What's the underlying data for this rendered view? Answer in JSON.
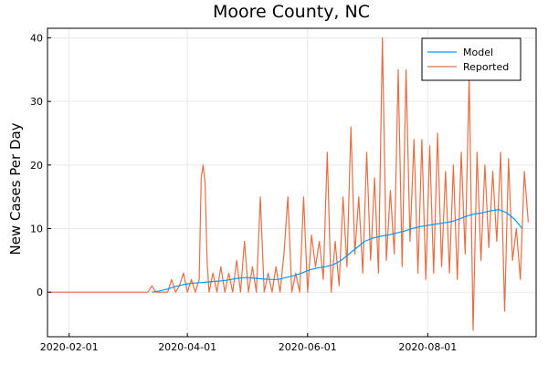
{
  "chart_data": {
    "type": "line",
    "title": "Moore County, NC",
    "ylabel": "New Cases Per Day",
    "xlabel": "",
    "x_ticks": [
      "2020-02-01",
      "2020-04-01",
      "2020-06-01",
      "2020-08-01"
    ],
    "y_ticks": [
      0,
      10,
      20,
      30,
      40
    ],
    "xlim": [
      "2020-01-21",
      "2020-09-25"
    ],
    "ylim": [
      -7,
      41.5
    ],
    "grid": true,
    "legend": "top-right",
    "colors": {
      "model": "#009af9",
      "reported": "#e26f46"
    },
    "series": [
      {
        "name": "Model",
        "points": [
          [
            "2020-03-14",
            0
          ],
          [
            "2020-03-18",
            0.2
          ],
          [
            "2020-03-22",
            0.5
          ],
          [
            "2020-03-26",
            0.9
          ],
          [
            "2020-03-30",
            1.2
          ],
          [
            "2020-04-03",
            1.4
          ],
          [
            "2020-04-07",
            1.5
          ],
          [
            "2020-04-11",
            1.6
          ],
          [
            "2020-04-15",
            1.7
          ],
          [
            "2020-04-19",
            1.8
          ],
          [
            "2020-04-23",
            2.0
          ],
          [
            "2020-04-27",
            2.2
          ],
          [
            "2020-05-01",
            2.3
          ],
          [
            "2020-05-05",
            2.2
          ],
          [
            "2020-05-09",
            2.1
          ],
          [
            "2020-05-13",
            2.0
          ],
          [
            "2020-05-17",
            2.0
          ],
          [
            "2020-05-21",
            2.3
          ],
          [
            "2020-05-25",
            2.6
          ],
          [
            "2020-05-29",
            3.0
          ],
          [
            "2020-06-02",
            3.5
          ],
          [
            "2020-06-06",
            3.8
          ],
          [
            "2020-06-10",
            4.0
          ],
          [
            "2020-06-14",
            4.3
          ],
          [
            "2020-06-18",
            5.0
          ],
          [
            "2020-06-22",
            6.0
          ],
          [
            "2020-06-26",
            7.0
          ],
          [
            "2020-06-30",
            8.0
          ],
          [
            "2020-07-04",
            8.5
          ],
          [
            "2020-07-08",
            8.8
          ],
          [
            "2020-07-12",
            9.0
          ],
          [
            "2020-07-16",
            9.3
          ],
          [
            "2020-07-20",
            9.6
          ],
          [
            "2020-07-24",
            10.0
          ],
          [
            "2020-07-28",
            10.3
          ],
          [
            "2020-08-01",
            10.5
          ],
          [
            "2020-08-05",
            10.7
          ],
          [
            "2020-08-09",
            10.9
          ],
          [
            "2020-08-13",
            11.1
          ],
          [
            "2020-08-17",
            11.5
          ],
          [
            "2020-08-21",
            12.0
          ],
          [
            "2020-08-25",
            12.3
          ],
          [
            "2020-08-29",
            12.5
          ],
          [
            "2020-09-02",
            12.8
          ],
          [
            "2020-09-06",
            13.0
          ],
          [
            "2020-09-10",
            12.5
          ],
          [
            "2020-09-14",
            11.5
          ],
          [
            "2020-09-18",
            10.0
          ]
        ]
      },
      {
        "name": "Reported",
        "points": [
          [
            "2020-01-22",
            0
          ],
          [
            "2020-03-12",
            0
          ],
          [
            "2020-03-14",
            1
          ],
          [
            "2020-03-16",
            0
          ],
          [
            "2020-03-22",
            0
          ],
          [
            "2020-03-24",
            2
          ],
          [
            "2020-03-26",
            0
          ],
          [
            "2020-03-28",
            1
          ],
          [
            "2020-03-30",
            3
          ],
          [
            "2020-04-01",
            0
          ],
          [
            "2020-04-03",
            2
          ],
          [
            "2020-04-05",
            0
          ],
          [
            "2020-04-07",
            2
          ],
          [
            "2020-04-08",
            18
          ],
          [
            "2020-04-09",
            20
          ],
          [
            "2020-04-10",
            17
          ],
          [
            "2020-04-11",
            5
          ],
          [
            "2020-04-12",
            0
          ],
          [
            "2020-04-14",
            3
          ],
          [
            "2020-04-16",
            0
          ],
          [
            "2020-04-18",
            4
          ],
          [
            "2020-04-20",
            0
          ],
          [
            "2020-04-22",
            3
          ],
          [
            "2020-04-24",
            0
          ],
          [
            "2020-04-26",
            5
          ],
          [
            "2020-04-28",
            0
          ],
          [
            "2020-04-30",
            8
          ],
          [
            "2020-05-02",
            0
          ],
          [
            "2020-05-04",
            4
          ],
          [
            "2020-05-06",
            0
          ],
          [
            "2020-05-08",
            15
          ],
          [
            "2020-05-10",
            0
          ],
          [
            "2020-05-12",
            3
          ],
          [
            "2020-05-14",
            0
          ],
          [
            "2020-05-16",
            4
          ],
          [
            "2020-05-18",
            0
          ],
          [
            "2020-05-20",
            6
          ],
          [
            "2020-05-22",
            15
          ],
          [
            "2020-05-24",
            0
          ],
          [
            "2020-05-26",
            3
          ],
          [
            "2020-05-28",
            0
          ],
          [
            "2020-05-30",
            15
          ],
          [
            "2020-06-01",
            0
          ],
          [
            "2020-06-03",
            9
          ],
          [
            "2020-06-05",
            4
          ],
          [
            "2020-06-07",
            8
          ],
          [
            "2020-06-09",
            2
          ],
          [
            "2020-06-11",
            22
          ],
          [
            "2020-06-13",
            0
          ],
          [
            "2020-06-15",
            8
          ],
          [
            "2020-06-17",
            1
          ],
          [
            "2020-06-19",
            15
          ],
          [
            "2020-06-21",
            4
          ],
          [
            "2020-06-23",
            26
          ],
          [
            "2020-06-25",
            6
          ],
          [
            "2020-06-27",
            15
          ],
          [
            "2020-06-29",
            3
          ],
          [
            "2020-07-01",
            22
          ],
          [
            "2020-07-03",
            5
          ],
          [
            "2020-07-05",
            18
          ],
          [
            "2020-07-07",
            3
          ],
          [
            "2020-07-09",
            40
          ],
          [
            "2020-07-11",
            5
          ],
          [
            "2020-07-13",
            16
          ],
          [
            "2020-07-15",
            6
          ],
          [
            "2020-07-17",
            35
          ],
          [
            "2020-07-19",
            4
          ],
          [
            "2020-07-21",
            35
          ],
          [
            "2020-07-23",
            8
          ],
          [
            "2020-07-25",
            24
          ],
          [
            "2020-07-27",
            3
          ],
          [
            "2020-07-29",
            24
          ],
          [
            "2020-07-31",
            2
          ],
          [
            "2020-08-02",
            23
          ],
          [
            "2020-08-04",
            3
          ],
          [
            "2020-08-06",
            25
          ],
          [
            "2020-08-08",
            4
          ],
          [
            "2020-08-10",
            19
          ],
          [
            "2020-08-12",
            3
          ],
          [
            "2020-08-14",
            20
          ],
          [
            "2020-08-16",
            2
          ],
          [
            "2020-08-18",
            22
          ],
          [
            "2020-08-20",
            6
          ],
          [
            "2020-08-22",
            34
          ],
          [
            "2020-08-24",
            -6
          ],
          [
            "2020-08-26",
            22
          ],
          [
            "2020-08-28",
            5
          ],
          [
            "2020-08-30",
            20
          ],
          [
            "2020-09-01",
            7
          ],
          [
            "2020-09-03",
            19
          ],
          [
            "2020-09-05",
            8
          ],
          [
            "2020-09-07",
            22
          ],
          [
            "2020-09-09",
            -3
          ],
          [
            "2020-09-11",
            21
          ],
          [
            "2020-09-13",
            5
          ],
          [
            "2020-09-15",
            10
          ],
          [
            "2020-09-17",
            2
          ],
          [
            "2020-09-19",
            19
          ],
          [
            "2020-09-21",
            11
          ]
        ]
      }
    ]
  }
}
